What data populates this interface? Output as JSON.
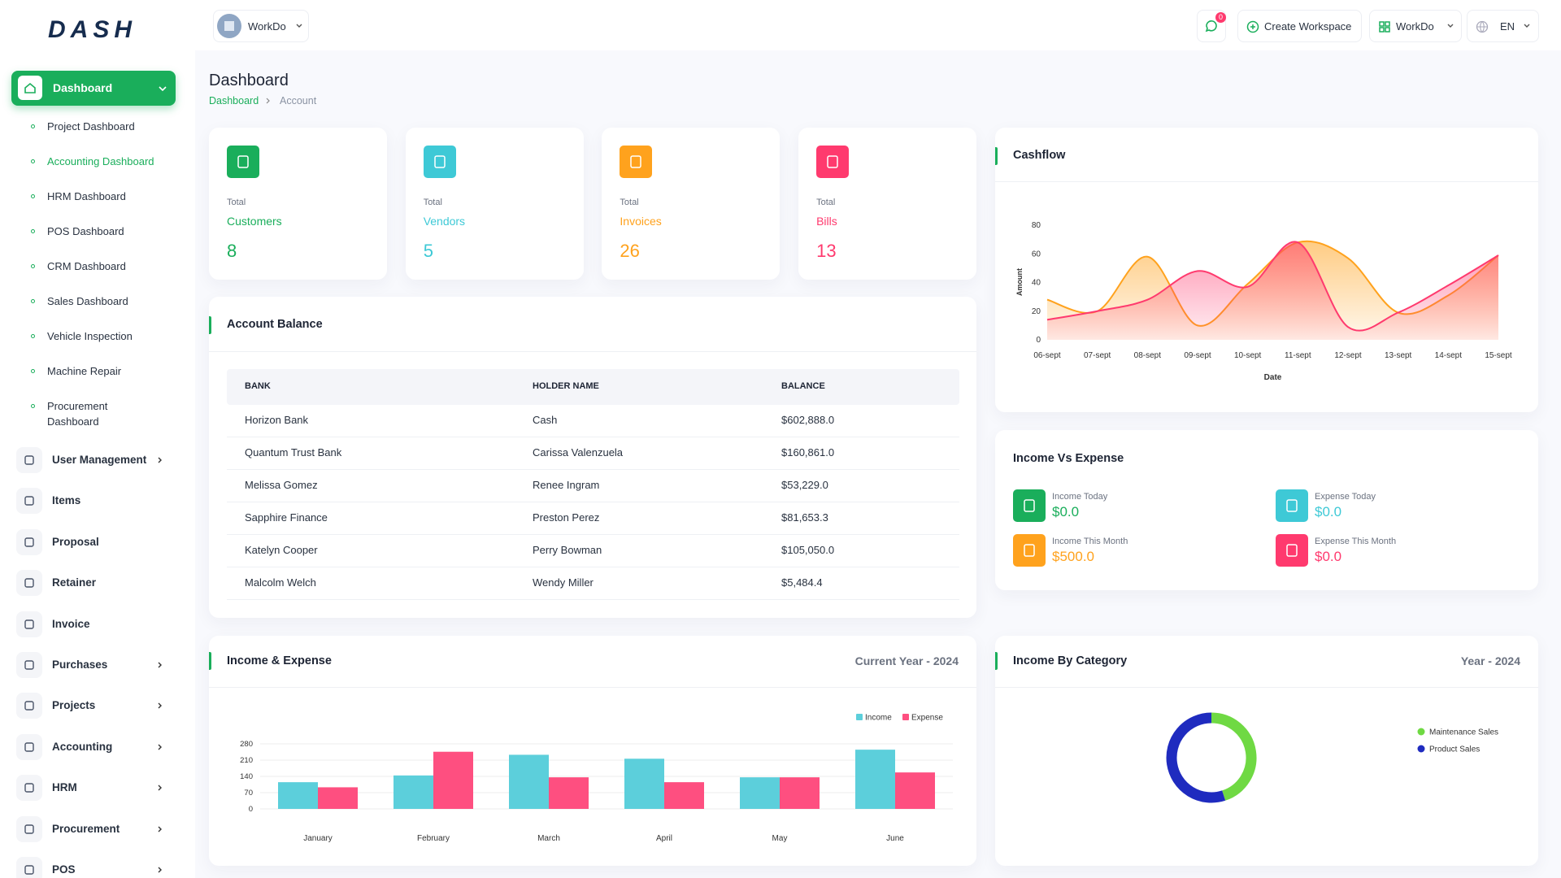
{
  "header": {
    "workspace": "WorkDo",
    "notifications": 0,
    "create_workspace": "Create Workspace",
    "workspace_menu": "WorkDo",
    "language": "EN"
  },
  "sidebar": {
    "logo": "DASH",
    "active": "Dashboard",
    "submenu": [
      {
        "label": "Project Dashboard"
      },
      {
        "label": "Accounting Dashboard",
        "active": true
      },
      {
        "label": "HRM Dashboard"
      },
      {
        "label": "POS Dashboard"
      },
      {
        "label": "CRM Dashboard"
      },
      {
        "label": "Sales Dashboard"
      },
      {
        "label": "Vehicle Inspection"
      },
      {
        "label": "Machine Repair"
      },
      {
        "label": "Procurement Dashboard"
      }
    ],
    "menu": [
      {
        "label": "User Management",
        "arrow": true
      },
      {
        "label": "Items"
      },
      {
        "label": "Proposal"
      },
      {
        "label": "Retainer"
      },
      {
        "label": "Invoice"
      },
      {
        "label": "Purchases",
        "arrow": true
      },
      {
        "label": "Projects",
        "arrow": true
      },
      {
        "label": "Accounting",
        "arrow": true
      },
      {
        "label": "HRM",
        "arrow": true
      },
      {
        "label": "Procurement",
        "arrow": true
      },
      {
        "label": "POS",
        "arrow": true
      }
    ]
  },
  "page": {
    "title": "Dashboard",
    "breadcrumb": [
      "Dashboard",
      "Account"
    ]
  },
  "stats": [
    {
      "caption": "Total",
      "label": "Customers",
      "value": 8,
      "color": "#1aae5b"
    },
    {
      "caption": "Total",
      "label": "Vendors",
      "value": 5,
      "color": "#3ec9d6"
    },
    {
      "caption": "Total",
      "label": "Invoices",
      "value": 26,
      "color": "#ffa21d"
    },
    {
      "caption": "Total",
      "label": "Bills",
      "value": 13,
      "color": "#ff3a6e"
    }
  ],
  "account_balance": {
    "title": "Account Balance",
    "columns": [
      "BANK",
      "HOLDER NAME",
      "BALANCE"
    ],
    "rows": [
      [
        "Horizon Bank",
        "Cash",
        "$602,888.0"
      ],
      [
        "Quantum Trust Bank",
        "Carissa Valenzuela",
        "$160,861.0"
      ],
      [
        "Melissa Gomez",
        "Renee Ingram",
        "$53,229.0"
      ],
      [
        "Sapphire Finance",
        "Preston Perez",
        "$81,653.3"
      ],
      [
        "Katelyn Cooper",
        "Perry Bowman",
        "$105,050.0"
      ],
      [
        "Malcolm Welch",
        "Wendy Miller",
        "$5,484.4"
      ]
    ]
  },
  "cashflow": {
    "type": "area",
    "title": "Cashflow",
    "x": [
      "06-sept",
      "07-sept",
      "08-sept",
      "09-sept",
      "10-sept",
      "11-sept",
      "12-sept",
      "13-sept",
      "14-sept",
      "15-sept"
    ],
    "series": [
      {
        "color": "#ffa21d",
        "values": [
          28,
          20,
          58,
          10,
          39,
          68,
          57,
          19,
          31,
          59
        ]
      },
      {
        "color": "#ff3a6e",
        "values": [
          14,
          20,
          28,
          48,
          37,
          68,
          9,
          19,
          38,
          59
        ]
      }
    ],
    "ylim": [
      0,
      80
    ],
    "yticks": [
      0,
      20,
      40,
      60,
      80
    ],
    "ylabel": "Amount",
    "xlabel": "Date"
  },
  "income_vs_expense": {
    "title": "Income Vs Expense",
    "items": [
      {
        "label": "Income Today",
        "value": "$0.0",
        "color": "#1aae5b"
      },
      {
        "label": "Expense Today",
        "value": "$0.0",
        "color": "#3ec9d6"
      },
      {
        "label": "Income This Month",
        "value": "$500.0",
        "color": "#ffa21d"
      },
      {
        "label": "Expense This Month",
        "value": "$0.0",
        "color": "#ff3a6e"
      }
    ]
  },
  "income_expense": {
    "type": "bar",
    "title": "Income & Expense",
    "subtitle": "Current Year - 2024",
    "categories": [
      "January",
      "February",
      "March",
      "April",
      "May",
      "June"
    ],
    "series": [
      {
        "name": "Income",
        "color": "#5ccfdb",
        "values": [
          115,
          144,
          233,
          216,
          136,
          255
        ]
      },
      {
        "name": "Expense",
        "color": "#fe4f80",
        "values": [
          93,
          246,
          136,
          115,
          136,
          157
        ]
      }
    ],
    "ylim": [
      0,
      280
    ],
    "yticks": [
      0,
      70,
      140,
      210,
      280
    ],
    "grid": true,
    "legend": "top-right"
  },
  "income_by_category": {
    "type": "donut",
    "title": "Income By Category",
    "subtitle": "Year - 2024",
    "series": [
      {
        "name": "Maintenance Sales",
        "color": "#6fd943",
        "value": 45
      },
      {
        "name": "Product Sales",
        "color": "#1f2bbf",
        "value": 55
      }
    ],
    "legend": "right"
  }
}
